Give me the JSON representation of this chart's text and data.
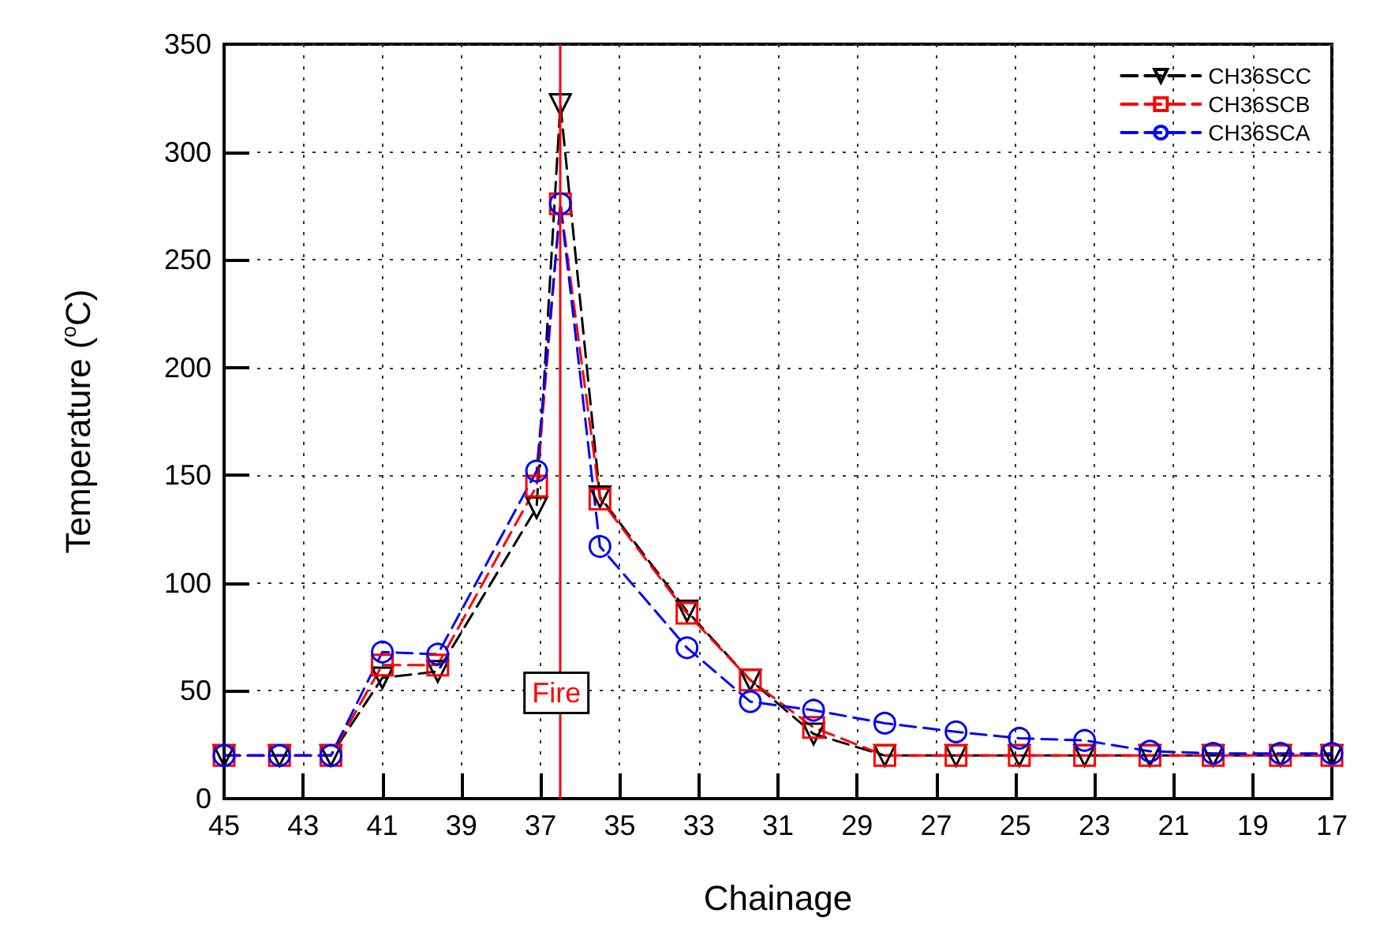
{
  "chart_data": {
    "type": "line",
    "xlabel": "Chainage",
    "ylabel": "Temperature ($^{o}$C)",
    "x": [
      45,
      43.6,
      42.3,
      41,
      39.6,
      37.1,
      36.5,
      35.5,
      33.3,
      31.7,
      30.1,
      28.3,
      26.5,
      24.9,
      23.25,
      21.6,
      20,
      18.3,
      17
    ],
    "series": [
      {
        "name": "CH36SCC",
        "color": "#000000",
        "marker": "triangle",
        "line_style": "dashed",
        "values": [
          20,
          20,
          20,
          56,
          59,
          135,
          322,
          140,
          87,
          55,
          30,
          20,
          20,
          20,
          20,
          20,
          20,
          20,
          20
        ]
      },
      {
        "name": "CH36SCB",
        "color": "#ff0000",
        "marker": "square",
        "line_style": "dashed",
        "values": [
          20,
          20,
          20,
          62,
          62,
          145,
          276,
          139,
          86,
          55,
          33,
          20,
          20,
          20,
          20,
          20,
          20,
          20,
          20
        ]
      },
      {
        "name": "CH36SCA",
        "color": "#0000ff",
        "marker": "circle",
        "line_style": "dashed",
        "values": [
          20,
          20,
          20,
          68,
          67,
          152,
          276,
          117,
          70,
          45,
          41,
          35,
          31,
          28,
          27,
          22,
          21,
          21,
          21
        ]
      }
    ],
    "xlim": [
      45,
      17
    ],
    "xticks": [
      45,
      43,
      41,
      39,
      37,
      35,
      33,
      31,
      29,
      27,
      25,
      23,
      21,
      19,
      17
    ],
    "ylim": [
      0,
      350
    ],
    "yticks": [
      0,
      50,
      100,
      150,
      200,
      250,
      300,
      350
    ],
    "ref_lines": [
      {
        "axis": "x",
        "value": 36.5,
        "label": "Fire",
        "color": "#ff0000"
      }
    ],
    "grid": true,
    "legend": "top right"
  }
}
